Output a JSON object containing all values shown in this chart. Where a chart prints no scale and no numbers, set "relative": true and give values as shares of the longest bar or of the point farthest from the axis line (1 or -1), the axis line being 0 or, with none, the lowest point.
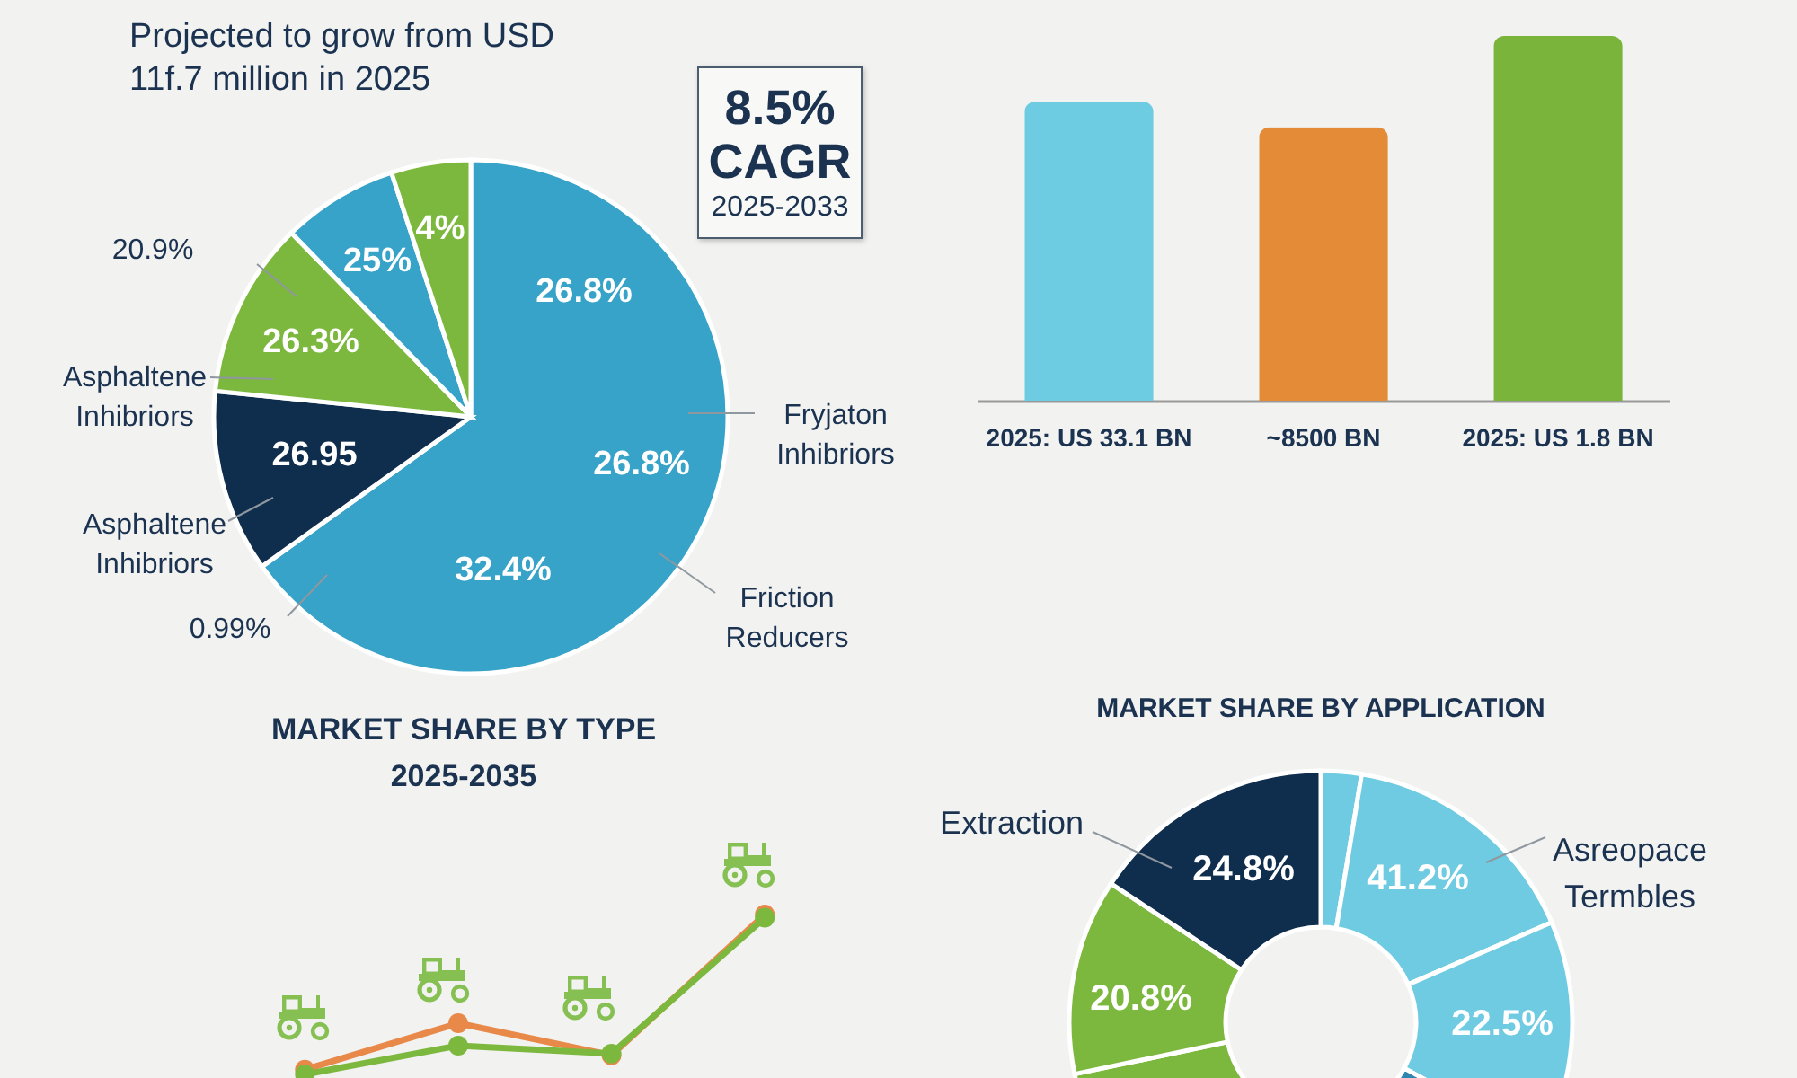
{
  "chart_data": [
    {
      "type": "pie",
      "title": "Projected to grow from USD 11f.7 million in 2025",
      "categories": [
        "Friction Reducers",
        "Asphaltene Inhibriors",
        "Asphaltene Inhibriors",
        null,
        null
      ],
      "values": [
        65.1,
        11.5,
        11.1,
        7.3,
        5.0
      ],
      "colors": [
        "#37a3c8",
        "#0f2d4c",
        "#7db83e",
        "#37a3c8",
        "#7db83e"
      ],
      "annotations": [
        "26.8%",
        "26.8%",
        "32.4%",
        "26.95",
        "26.3%",
        "25%",
        "4%",
        "20.9%",
        "0.99%",
        "Fryjaton Inhibriors"
      ]
    },
    {
      "type": "other",
      "annotations": [
        "8.5%",
        "CAGR",
        "2025-2033"
      ]
    },
    {
      "type": "bar",
      "relative": true,
      "categories": [
        "2025: US 33.1 BN",
        "~8500 BN",
        "2025: US 1.8 BN"
      ],
      "values": [
        0.82,
        0.75,
        1
      ],
      "colors": [
        "#6dcce1",
        "#e48b37",
        "#7bb43b"
      ]
    },
    {
      "type": "line",
      "title": "MARKET SHARE BY TYPE",
      "subtitle": "2025-2035",
      "relative": true,
      "categories": [
        null,
        null,
        null,
        null
      ],
      "series": [
        {
          "color": "#e8894a",
          "values": [
            0.03,
            0.32,
            0.12,
            1
          ]
        },
        {
          "color": "#7db83e",
          "values": [
            0,
            0.18,
            0.13,
            0.98
          ]
        }
      ],
      "marker": "circle"
    },
    {
      "type": "donut",
      "title": "MARKET SHARE BY APPLICATION",
      "categories": [
        null,
        "Asreopace Termbles",
        null,
        null,
        null,
        null,
        "Extraction"
      ],
      "values": [
        2.6,
        15.9,
        14.5,
        19.3,
        19.4,
        12.6,
        15.7
      ],
      "colors": [
        "#6ecbe1",
        "#6ecbe1",
        "#6ecbe1",
        "#2d87b0",
        "#7db83e",
        "#7db83e",
        "#0f2d4c"
      ],
      "annotations": [
        "41.2%",
        "22.5%",
        "20.8%",
        "24.8%"
      ]
    }
  ]
}
